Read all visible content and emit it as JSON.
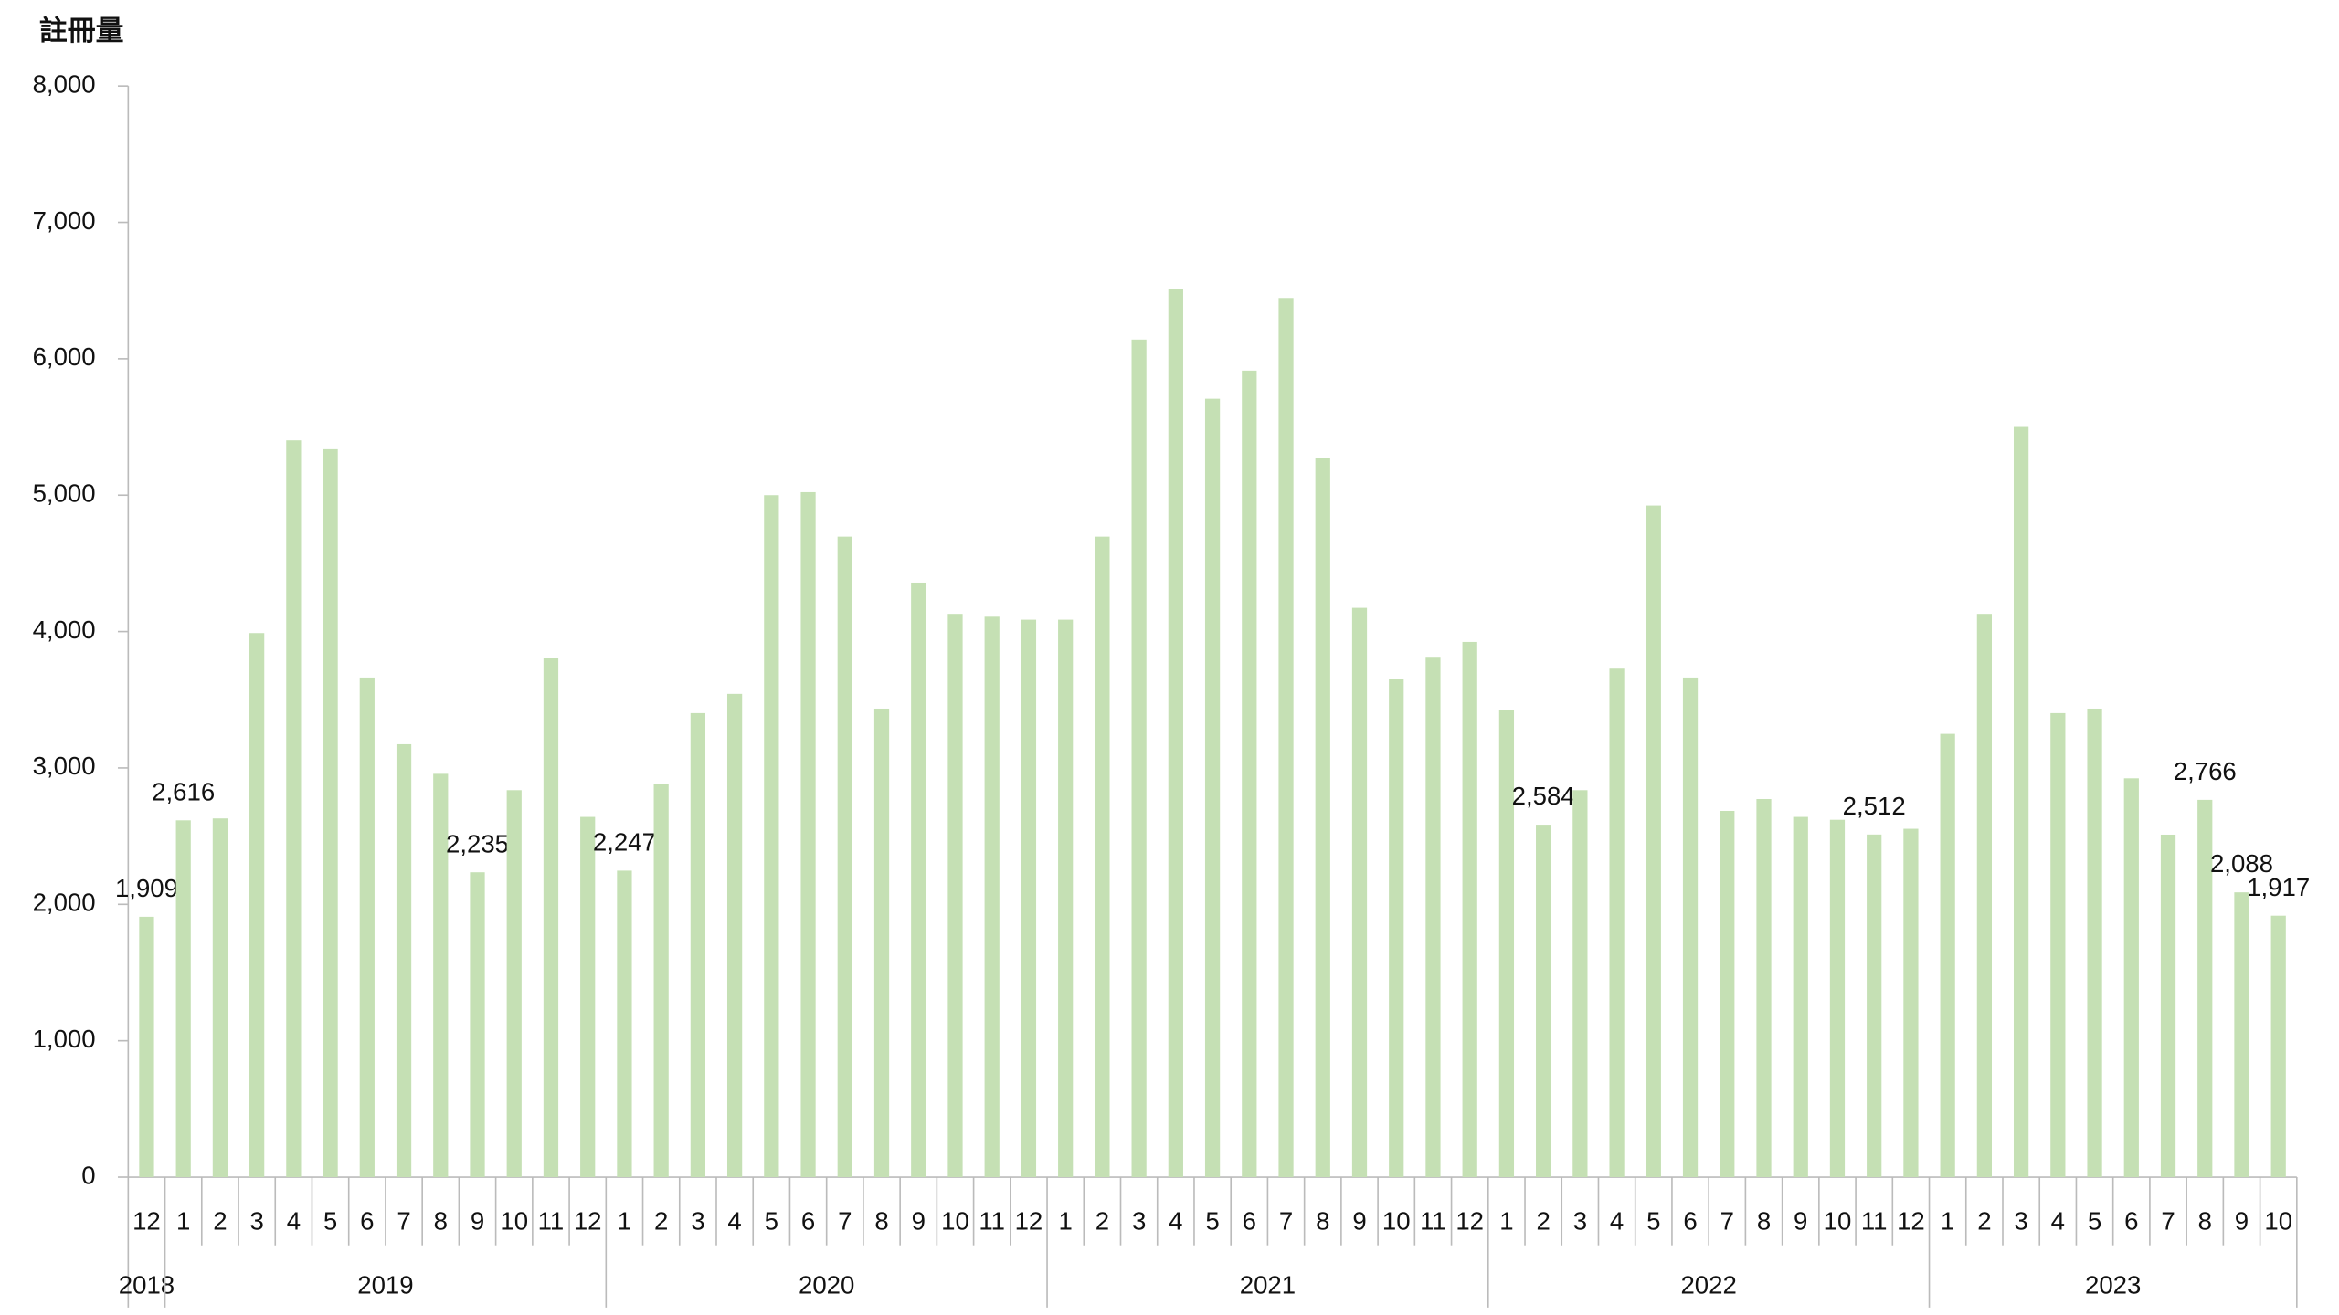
{
  "chart_data": {
    "type": "bar",
    "y_label": "註冊量",
    "color": "#c5e0b4",
    "ylim": [
      0,
      8000
    ],
    "yticks": [
      0,
      {
        "value": 1000,
        "label": "1,000"
      },
      {
        "value": 2000,
        "label": "2,000"
      },
      {
        "value": 3000,
        "label": "3,000"
      },
      {
        "value": 4000,
        "label": "4,000"
      },
      {
        "value": 5000,
        "label": "5,000"
      },
      {
        "value": 6000,
        "label": "6,000"
      },
      {
        "value": 7000,
        "label": "7,000"
      },
      {
        "value": 8000,
        "label": "8,000"
      }
    ],
    "groups": [
      {
        "label": "2018",
        "categories": [
          "12"
        ]
      },
      {
        "label": "2019",
        "categories": [
          "1",
          "2",
          "3",
          "4",
          "5",
          "6",
          "7",
          "8",
          "9",
          "10",
          "11",
          "12"
        ]
      },
      {
        "label": "2020",
        "categories": [
          "1",
          "2",
          "3",
          "4",
          "5",
          "6",
          "7",
          "8",
          "9",
          "10",
          "11",
          "12"
        ]
      },
      {
        "label": "2021",
        "categories": [
          "1",
          "2",
          "3",
          "4",
          "5",
          "6",
          "7",
          "8",
          "9",
          "10",
          "11",
          "12"
        ]
      },
      {
        "label": "2022",
        "categories": [
          "1",
          "2",
          "3",
          "4",
          "5",
          "6",
          "7",
          "8",
          "9",
          "10",
          "11",
          "12"
        ]
      },
      {
        "label": "2023",
        "categories": [
          "1",
          "2",
          "3",
          "4",
          "5",
          "6",
          "7",
          "8",
          "9",
          "10"
        ]
      }
    ],
    "values": [
      1909,
      2616,
      2630,
      3989,
      5402,
      5337,
      3663,
      3174,
      2957,
      2235,
      2837,
      3804,
      2641,
      2247,
      2880,
      3402,
      3543,
      5000,
      5022,
      4696,
      3435,
      4359,
      4130,
      4109,
      4087,
      4087,
      4696,
      6141,
      6511,
      5707,
      5913,
      6446,
      5272,
      4174,
      3652,
      3815,
      3924,
      3424,
      2584,
      2837,
      3728,
      4924,
      3663,
      2685,
      2772,
      2641,
      2620,
      2512,
      2554,
      3250,
      4130,
      5500,
      3402,
      3435,
      2924,
      2511,
      2766,
      2088,
      1917
    ],
    "value_labels": [
      "1,909",
      "2,616",
      null,
      null,
      null,
      null,
      null,
      null,
      null,
      "2,235",
      null,
      null,
      null,
      "2,247",
      null,
      null,
      null,
      null,
      null,
      null,
      null,
      null,
      null,
      null,
      null,
      null,
      null,
      null,
      null,
      null,
      null,
      null,
      null,
      null,
      null,
      null,
      null,
      null,
      "2,584",
      null,
      null,
      null,
      null,
      null,
      null,
      null,
      null,
      "2,512",
      null,
      null,
      null,
      null,
      null,
      null,
      null,
      null,
      "2,766",
      "2,088",
      "1,917"
    ]
  }
}
